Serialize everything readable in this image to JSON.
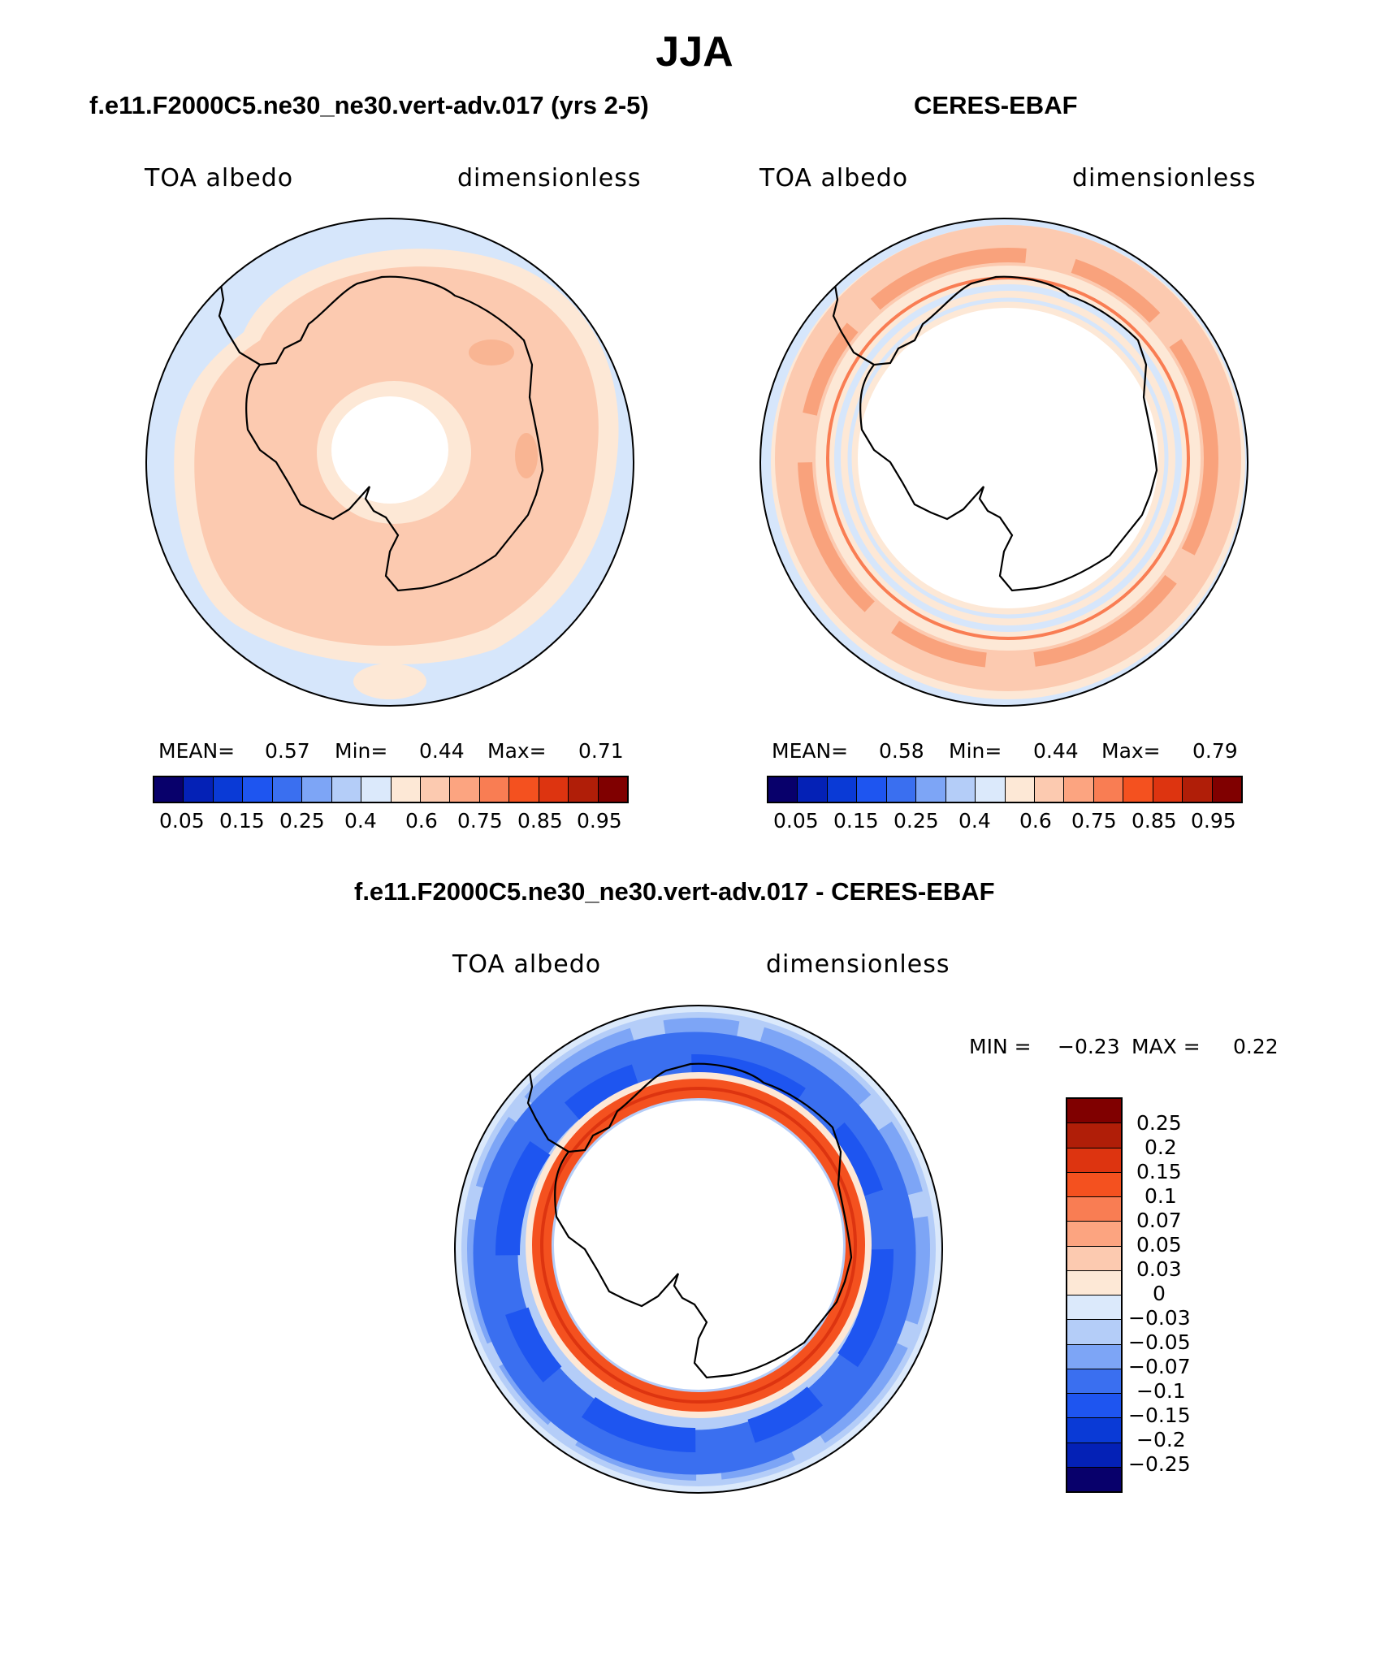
{
  "figure": {
    "title": "JJA",
    "panel_left_title": "f.e11.F2000C5.ne30_ne30.vert-adv.017 (yrs 2-5)",
    "panel_right_title": "CERES-EBAF",
    "panel_diff_title": "f.e11.F2000C5.ne30_ne30.vert-adv.017 - CERES-EBAF"
  },
  "panels": [
    {
      "variable": "TOA albedo",
      "units": "dimensionless",
      "mean_label": "MEAN=",
      "mean": "0.57",
      "min_label": "Min=",
      "min": "0.44",
      "max_label": "Max=",
      "max": "0.71"
    },
    {
      "variable": "TOA albedo",
      "units": "dimensionless",
      "mean_label": "MEAN=",
      "mean": "0.58",
      "min_label": "Min=",
      "min": "0.44",
      "max_label": "Max=",
      "max": "0.79"
    },
    {
      "variable": "TOA albedo",
      "units": "dimensionless",
      "min_label": "MIN =",
      "min": "−0.23",
      "max_label": "MAX =",
      "max": "0.22"
    }
  ],
  "colorbar_abs": {
    "colors": [
      "#08006b",
      "#0421b6",
      "#0a3ad6",
      "#1e55f0",
      "#3a6ff0",
      "#7da5f6",
      "#b4cdf8",
      "#dbe9fb",
      "#fde8d6",
      "#fccab0",
      "#fca480",
      "#f97d53",
      "#f4511f",
      "#dd3410",
      "#b01e08",
      "#800000"
    ],
    "ticks": [
      "0.05",
      "0.15",
      "0.25",
      "0.4",
      "0.6",
      "0.75",
      "0.85",
      "0.95"
    ]
  },
  "colorbar_diff": {
    "colors": [
      "#800000",
      "#b01e08",
      "#dd3410",
      "#f4511f",
      "#f97d53",
      "#fca480",
      "#fccab0",
      "#fde8d6",
      "#dbe9fb",
      "#b4cdf8",
      "#7da5f6",
      "#3a6ff0",
      "#1e55f0",
      "#0a3ad6",
      "#0421b6",
      "#08006b"
    ],
    "ticks": [
      "0.25",
      "0.2",
      "0.15",
      "0.1",
      "0.07",
      "0.05",
      "0.03",
      "0",
      "−0.03",
      "−0.05",
      "−0.07",
      "−0.1",
      "−0.15",
      "−0.2",
      "−0.25"
    ]
  },
  "map_colors": {
    "ocean_light_blue": "#d6e6fb",
    "peach_light": "#fde8d6",
    "peach": "#fccab0",
    "orange_mid": "#f97d53",
    "orange_red": "#f4511f",
    "blue_light": "#b4cdf8",
    "blue_mid": "#3a6ff0",
    "blue_dark": "#1e55f0"
  }
}
